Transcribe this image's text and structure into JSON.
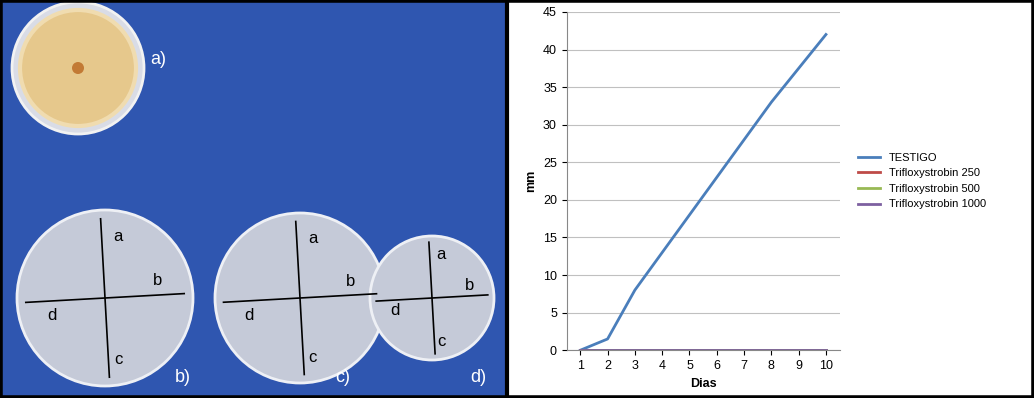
{
  "chart_data": {
    "type": "line",
    "x": [
      1,
      2,
      3,
      4,
      5,
      6,
      7,
      8,
      9,
      10
    ],
    "series": [
      {
        "name": "TESTIGO",
        "color": "#4a7ebb",
        "values": [
          0,
          1.5,
          8,
          13,
          18,
          23,
          28,
          33,
          37.5,
          42
        ]
      },
      {
        "name": "Trifloxystrobin 250",
        "color": "#be4b48",
        "values": [
          0,
          0,
          0,
          0,
          0,
          0,
          0,
          0,
          0,
          0
        ]
      },
      {
        "name": "Trifloxystrobin 500",
        "color": "#98b954",
        "values": [
          0,
          0,
          0,
          0,
          0,
          0,
          0,
          0,
          0,
          0
        ]
      },
      {
        "name": "Trifloxystrobin 1000",
        "color": "#7d60a0",
        "values": [
          0,
          0,
          0,
          0,
          0,
          0,
          0,
          0,
          0,
          0
        ]
      }
    ],
    "x_label": "Dias",
    "y_label": "mm",
    "xlim": [
      0.5,
      10.5
    ],
    "xticks": [
      1,
      2,
      3,
      4,
      5,
      6,
      7,
      8,
      9,
      10
    ],
    "ylim": [
      0,
      45
    ],
    "yticks": [
      0,
      5,
      10,
      15,
      20,
      25,
      30,
      35,
      40,
      45
    ],
    "grid": true,
    "legend": "right"
  },
  "photo": {
    "plate_labels": [
      "a)",
      "b)",
      "c)",
      "d)"
    ],
    "quadrant_labels": [
      "a",
      "b",
      "c",
      "d"
    ]
  }
}
